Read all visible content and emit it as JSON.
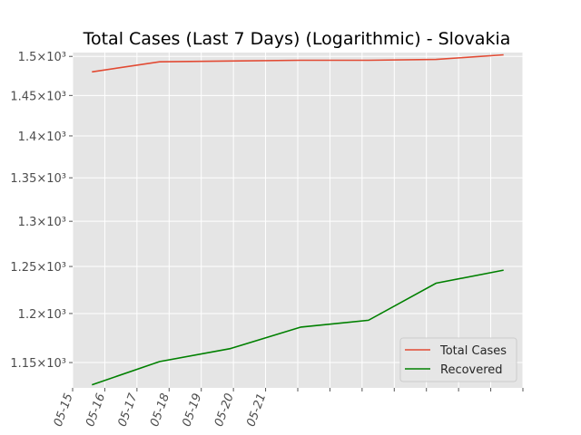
{
  "chart_data": {
    "type": "line",
    "title": "Total Cases (Last 7 Days) (Logarithmic) - Slovakia",
    "yscale": "log",
    "ylim": [
      1125,
      1505
    ],
    "yticks": [
      {
        "value": 1150,
        "label": "1.15×10³"
      },
      {
        "value": 1200,
        "label": "1.2×10³"
      },
      {
        "value": 1250,
        "label": "1.25×10³"
      },
      {
        "value": 1300,
        "label": "1.3×10³"
      },
      {
        "value": 1350,
        "label": "1.35×10³"
      },
      {
        "value": 1400,
        "label": "1.4×10³"
      },
      {
        "value": 1450,
        "label": "1.45×10³"
      },
      {
        "value": 1500,
        "label": "1.5×10³"
      }
    ],
    "x_ticks": [
      "05-15",
      "05-16",
      "05-17",
      "05-18",
      "05-19",
      "05-20",
      "05-21",
      "",
      "",
      "",
      "",
      "",
      "",
      "",
      ""
    ],
    "x_range": [
      0,
      14
    ],
    "grid": true,
    "legend_position": "lower-right",
    "series": [
      {
        "name": "Total Cases",
        "color": "#E24A33",
        "x": [
          0.6,
          2.7,
          4.9,
          7.1,
          9.2,
          11.3,
          13.4
        ],
        "y": [
          1480,
          1493,
          1494,
          1495,
          1495,
          1496,
          1502
        ]
      },
      {
        "name": "Recovered",
        "color": "#008000",
        "x": [
          0.6,
          2.7,
          4.9,
          7.1,
          9.2,
          11.3,
          13.4
        ],
        "y": [
          1128,
          1151,
          1164,
          1186,
          1193,
          1232,
          1246
        ]
      }
    ]
  }
}
